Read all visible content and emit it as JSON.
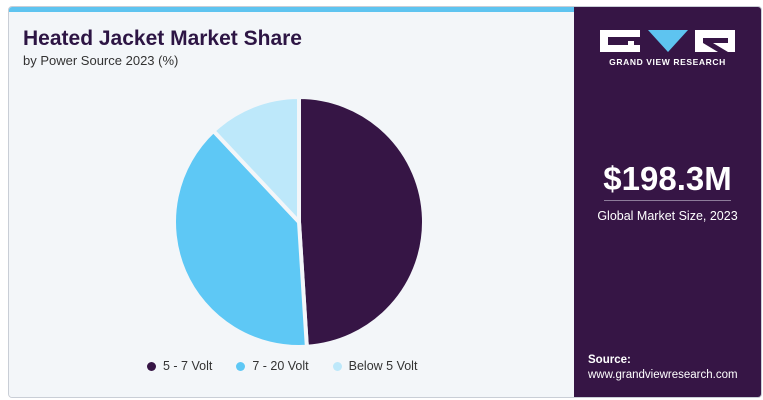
{
  "header": {
    "title": "Heated Jacket Market Share",
    "subtitle": "by Power Source 2023 (%)"
  },
  "chart_data": {
    "type": "pie",
    "title": "Heated Jacket Market Share",
    "subtitle": "by Power Source 2023 (%)",
    "categories": [
      "5 - 7 Volt",
      "7 - 20 Volt",
      "Below 5 Volt"
    ],
    "values": [
      49,
      39,
      12
    ],
    "colors": [
      "#361545",
      "#5ec8f5",
      "#bde8fa"
    ],
    "legend_position": "bottom",
    "slice_labels_shown": false
  },
  "legend": {
    "items": [
      {
        "label": "5 - 7 Volt",
        "color": "#361545"
      },
      {
        "label": "7 - 20 Volt",
        "color": "#5ec8f5"
      },
      {
        "label": "Below 5 Volt",
        "color": "#bde8fa"
      }
    ]
  },
  "sidebar": {
    "logo_text": "GRAND VIEW RESEARCH",
    "logo_icon": "gvr-logo-icon",
    "market_size": "$198.3M",
    "market_size_label": "Global Market Size, 2023",
    "source_label": "Source:",
    "source_url": "www.grandviewresearch.com"
  },
  "colors": {
    "brand_dark": "#361545",
    "accent_blue": "#5ec4f0",
    "background": "#f3f6f9"
  }
}
